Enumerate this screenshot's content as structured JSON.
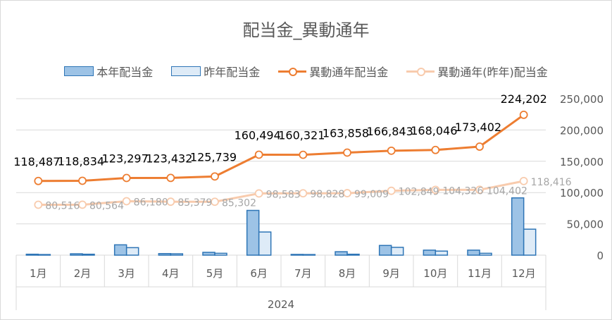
{
  "chart_data": {
    "type": "bar",
    "title": "配当金_異動通年",
    "categories": [
      "1月",
      "2月",
      "3月",
      "4月",
      "5月",
      "6月",
      "7月",
      "8月",
      "9月",
      "10月",
      "11月",
      "12月"
    ],
    "group_label": "2024",
    "series": [
      {
        "name": "本年配当金",
        "kind": "bar",
        "values": [
          1500,
          2200,
          16500,
          2500,
          4500,
          71500,
          1200,
          5500,
          15500,
          8000,
          8000,
          91500
        ],
        "color": "#9dc3e6"
      },
      {
        "name": "昨年配当金",
        "kind": "bar",
        "values": [
          1000,
          1500,
          12000,
          2200,
          3000,
          37000,
          1000,
          1500,
          12500,
          6500,
          3000,
          41500
        ],
        "color": "#deebf7"
      },
      {
        "name": "異動通年配当金",
        "kind": "line",
        "values": [
          118487,
          118834,
          123297,
          123432,
          125739,
          160494,
          160321,
          163858,
          166843,
          168046,
          173402,
          224202
        ],
        "labels": [
          "118,487",
          "118,834",
          "123,297",
          "123,432",
          "125,739",
          "160,494",
          "160,321",
          "163,858",
          "166,843",
          "168,046",
          "173,402",
          "224,202"
        ],
        "color": "#ed7d31"
      },
      {
        "name": "異動通年(昨年)配当金",
        "kind": "line",
        "values": [
          80516,
          80564,
          86180,
          85379,
          85302,
          98583,
          98828,
          99009,
          102849,
          104326,
          104402,
          118416
        ],
        "labels": [
          "80,516",
          "80,564",
          "86,180",
          "85,379",
          "85,302",
          "98,583",
          "98,828",
          "99,009",
          "102,849",
          "104,326",
          "104,402",
          "118,416"
        ],
        "color": "#f8cbad"
      }
    ],
    "y_axis": {
      "min": 0,
      "max": 250000,
      "step": 50000,
      "position": "right",
      "tick_labels": [
        "0",
        "50,000",
        "100,000",
        "150,000",
        "200,000",
        "250,000"
      ]
    },
    "grid": true,
    "legend": "top"
  }
}
